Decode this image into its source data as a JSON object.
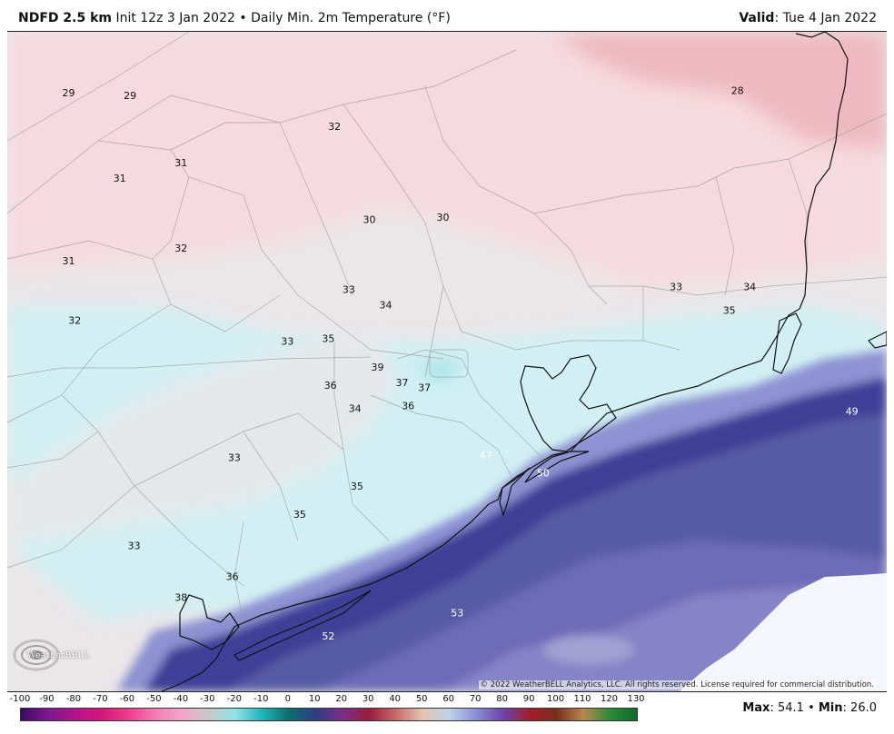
{
  "header": {
    "model": "NDFD 2.5 km",
    "init": "Init 12z 3 Jan 2022",
    "separator": "•",
    "field": "Daily Min. 2m Temperature (°F)",
    "valid_label": "Valid",
    "valid_date": ": Tue 4 Jan 2022"
  },
  "map": {
    "labels": [
      {
        "value": "29",
        "lon": -97.35,
        "lat": 30.85
      },
      {
        "value": "29",
        "lon": -97.05,
        "lat": 30.84
      },
      {
        "value": "28",
        "lon": -94.08,
        "lat": 30.86
      },
      {
        "value": "32",
        "lon": -96.05,
        "lat": 30.72
      },
      {
        "value": "31",
        "lon": -96.8,
        "lat": 30.58
      },
      {
        "value": "31",
        "lon": -97.1,
        "lat": 30.52
      },
      {
        "value": "30",
        "lon": -95.88,
        "lat": 30.36
      },
      {
        "value": "30",
        "lon": -95.52,
        "lat": 30.37
      },
      {
        "value": "31",
        "lon": -97.35,
        "lat": 30.2
      },
      {
        "value": "32",
        "lon": -96.8,
        "lat": 30.25
      },
      {
        "value": "33",
        "lon": -95.98,
        "lat": 30.09
      },
      {
        "value": "34",
        "lon": -95.8,
        "lat": 30.03
      },
      {
        "value": "33",
        "lon": -94.38,
        "lat": 30.1
      },
      {
        "value": "34",
        "lon": -94.02,
        "lat": 30.1
      },
      {
        "value": "35",
        "lon": -94.12,
        "lat": 30.01
      },
      {
        "value": "32",
        "lon": -97.32,
        "lat": 29.97
      },
      {
        "value": "33",
        "lon": -96.28,
        "lat": 29.89
      },
      {
        "value": "35",
        "lon": -96.08,
        "lat": 29.9
      },
      {
        "value": "39",
        "lon": -95.84,
        "lat": 29.79
      },
      {
        "value": "37",
        "lon": -95.72,
        "lat": 29.73
      },
      {
        "value": "37",
        "lon": -95.61,
        "lat": 29.71
      },
      {
        "value": "36",
        "lon": -96.07,
        "lat": 29.72
      },
      {
        "value": "34",
        "lon": -95.95,
        "lat": 29.63
      },
      {
        "value": "36",
        "lon": -95.69,
        "lat": 29.64
      },
      {
        "value": "49",
        "lon": -93.52,
        "lat": 29.62
      },
      {
        "value": "47",
        "lon": -95.31,
        "lat": 29.45
      },
      {
        "value": "50",
        "lon": -95.03,
        "lat": 29.38
      },
      {
        "value": "33",
        "lon": -96.54,
        "lat": 29.44
      },
      {
        "value": "35",
        "lon": -95.94,
        "lat": 29.33
      },
      {
        "value": "35",
        "lon": -96.22,
        "lat": 29.22
      },
      {
        "value": "33",
        "lon": -97.03,
        "lat": 29.1
      },
      {
        "value": "36",
        "lon": -96.55,
        "lat": 28.98
      },
      {
        "value": "38",
        "lon": -96.8,
        "lat": 28.9
      },
      {
        "value": "53",
        "lon": -95.45,
        "lat": 28.84
      },
      {
        "value": "52",
        "lon": -96.08,
        "lat": 28.75
      }
    ],
    "copyright": "© 2022 WeatherBELL Analytics, LLC. All rights reserved. License required for commercial distribution.",
    "logo": "WeatherBELL"
  },
  "legend": {
    "ticks": [
      "-100",
      "-90",
      "-80",
      "-70",
      "-60",
      "-50",
      "-40",
      "-30",
      "-20",
      "-10",
      "0",
      "10",
      "20",
      "30",
      "40",
      "50",
      "60",
      "70",
      "80",
      "90",
      "100",
      "110",
      "120",
      "130"
    ],
    "min": -100,
    "max": 130,
    "colors": [
      "#3b0a63",
      "#7a1a8f",
      "#b3138a",
      "#d6157a",
      "#ef3b8e",
      "#f27cb1",
      "#f2a5c8",
      "#c9c9c9",
      "#8fe3ea",
      "#1fb6b8",
      "#0b6f6f",
      "#2e3d7f",
      "#7b2e8c",
      "#9b1c3b",
      "#c76b6b",
      "#e6c3b0",
      "#bcd3e8",
      "#8a8ed6",
      "#6c44a8",
      "#a51c2c",
      "#7a2f1c",
      "#b8874e",
      "#2c8a3a",
      "#0a6b2a"
    ],
    "max_label": "Max",
    "max_value": ": 54.1",
    "sep": "•",
    "min_label": "Min",
    "min_value": ": 26.0"
  },
  "colors": {
    "cold_pink": "#f5d9dd",
    "gray_land": "#e8e4e6",
    "light_cyan": "#cfeff2",
    "coast_blue": "#3e3f96",
    "gulf_purple": "#5a5aa8",
    "gulf_lavender": "#7d7cc2",
    "gulf_white": "#f4f6fc"
  }
}
